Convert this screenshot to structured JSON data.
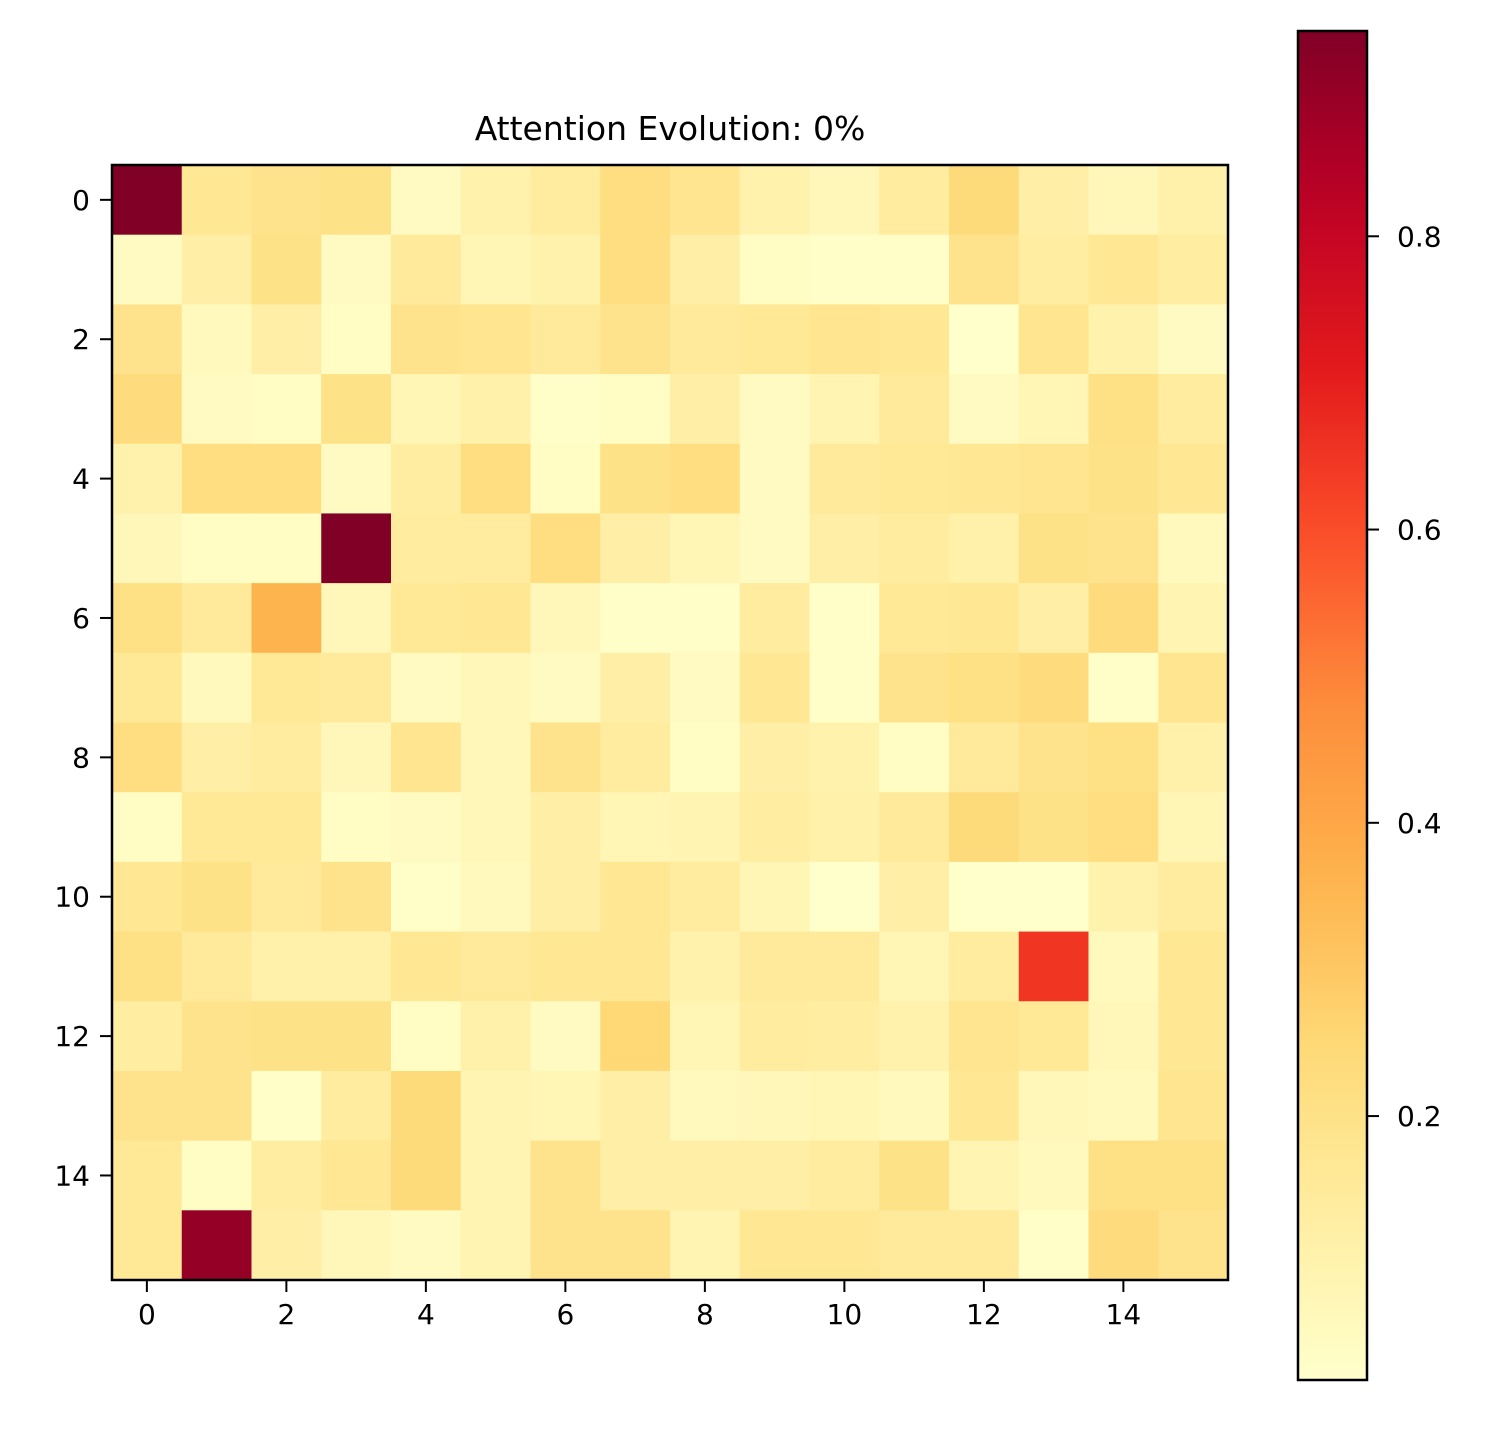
{
  "chart_data": {
    "type": "heatmap",
    "title": "Attention Evolution: 0%",
    "xlabel": "",
    "ylabel": "",
    "rows": 16,
    "cols": 16,
    "colormap": "YlOrRd",
    "vmin": 0.02,
    "vmax": 0.94,
    "x_ticks": [
      0,
      2,
      4,
      6,
      8,
      10,
      12,
      14
    ],
    "y_ticks": [
      0,
      2,
      4,
      6,
      8,
      10,
      12,
      14
    ],
    "colorbar_ticks": [
      0.2,
      0.4,
      0.6,
      0.8
    ],
    "colorbar_tick_labels": [
      "0.2",
      "0.4",
      "0.6",
      "0.8"
    ],
    "values": [
      [
        0.94,
        0.17,
        0.19,
        0.2,
        0.05,
        0.1,
        0.14,
        0.22,
        0.18,
        0.1,
        0.07,
        0.14,
        0.24,
        0.12,
        0.07,
        0.11
      ],
      [
        0.05,
        0.12,
        0.2,
        0.05,
        0.15,
        0.08,
        0.1,
        0.22,
        0.12,
        0.04,
        0.03,
        0.03,
        0.19,
        0.13,
        0.17,
        0.13
      ],
      [
        0.19,
        0.06,
        0.12,
        0.04,
        0.19,
        0.18,
        0.15,
        0.19,
        0.15,
        0.16,
        0.18,
        0.17,
        0.02,
        0.18,
        0.1,
        0.05
      ],
      [
        0.23,
        0.05,
        0.04,
        0.2,
        0.08,
        0.11,
        0.03,
        0.04,
        0.12,
        0.05,
        0.09,
        0.15,
        0.05,
        0.08,
        0.21,
        0.14
      ],
      [
        0.1,
        0.22,
        0.22,
        0.05,
        0.13,
        0.22,
        0.04,
        0.2,
        0.22,
        0.05,
        0.15,
        0.16,
        0.17,
        0.18,
        0.2,
        0.17
      ],
      [
        0.07,
        0.04,
        0.04,
        0.94,
        0.14,
        0.14,
        0.22,
        0.12,
        0.08,
        0.05,
        0.12,
        0.14,
        0.11,
        0.2,
        0.19,
        0.06
      ],
      [
        0.21,
        0.15,
        0.36,
        0.07,
        0.16,
        0.17,
        0.07,
        0.03,
        0.03,
        0.14,
        0.03,
        0.16,
        0.17,
        0.12,
        0.23,
        0.09
      ],
      [
        0.16,
        0.06,
        0.16,
        0.15,
        0.05,
        0.07,
        0.05,
        0.12,
        0.05,
        0.17,
        0.03,
        0.19,
        0.21,
        0.23,
        0.03,
        0.18
      ],
      [
        0.22,
        0.12,
        0.14,
        0.07,
        0.18,
        0.07,
        0.19,
        0.14,
        0.04,
        0.12,
        0.1,
        0.04,
        0.15,
        0.19,
        0.21,
        0.11
      ],
      [
        0.04,
        0.16,
        0.16,
        0.04,
        0.05,
        0.07,
        0.12,
        0.08,
        0.09,
        0.13,
        0.11,
        0.15,
        0.24,
        0.2,
        0.22,
        0.08
      ],
      [
        0.17,
        0.2,
        0.15,
        0.19,
        0.03,
        0.06,
        0.12,
        0.17,
        0.14,
        0.08,
        0.02,
        0.12,
        0.02,
        0.02,
        0.1,
        0.14
      ],
      [
        0.21,
        0.15,
        0.11,
        0.11,
        0.17,
        0.15,
        0.17,
        0.17,
        0.1,
        0.15,
        0.15,
        0.08,
        0.14,
        0.65,
        0.06,
        0.17
      ],
      [
        0.13,
        0.19,
        0.2,
        0.2,
        0.04,
        0.11,
        0.05,
        0.25,
        0.08,
        0.14,
        0.13,
        0.1,
        0.18,
        0.16,
        0.07,
        0.17
      ],
      [
        0.19,
        0.19,
        0.03,
        0.14,
        0.24,
        0.09,
        0.08,
        0.12,
        0.06,
        0.07,
        0.08,
        0.06,
        0.17,
        0.07,
        0.06,
        0.18
      ],
      [
        0.16,
        0.04,
        0.13,
        0.17,
        0.24,
        0.09,
        0.19,
        0.12,
        0.12,
        0.12,
        0.14,
        0.2,
        0.09,
        0.06,
        0.21,
        0.21
      ],
      [
        0.16,
        0.9,
        0.12,
        0.07,
        0.05,
        0.09,
        0.19,
        0.19,
        0.09,
        0.17,
        0.17,
        0.15,
        0.15,
        0.03,
        0.23,
        0.19
      ]
    ]
  }
}
